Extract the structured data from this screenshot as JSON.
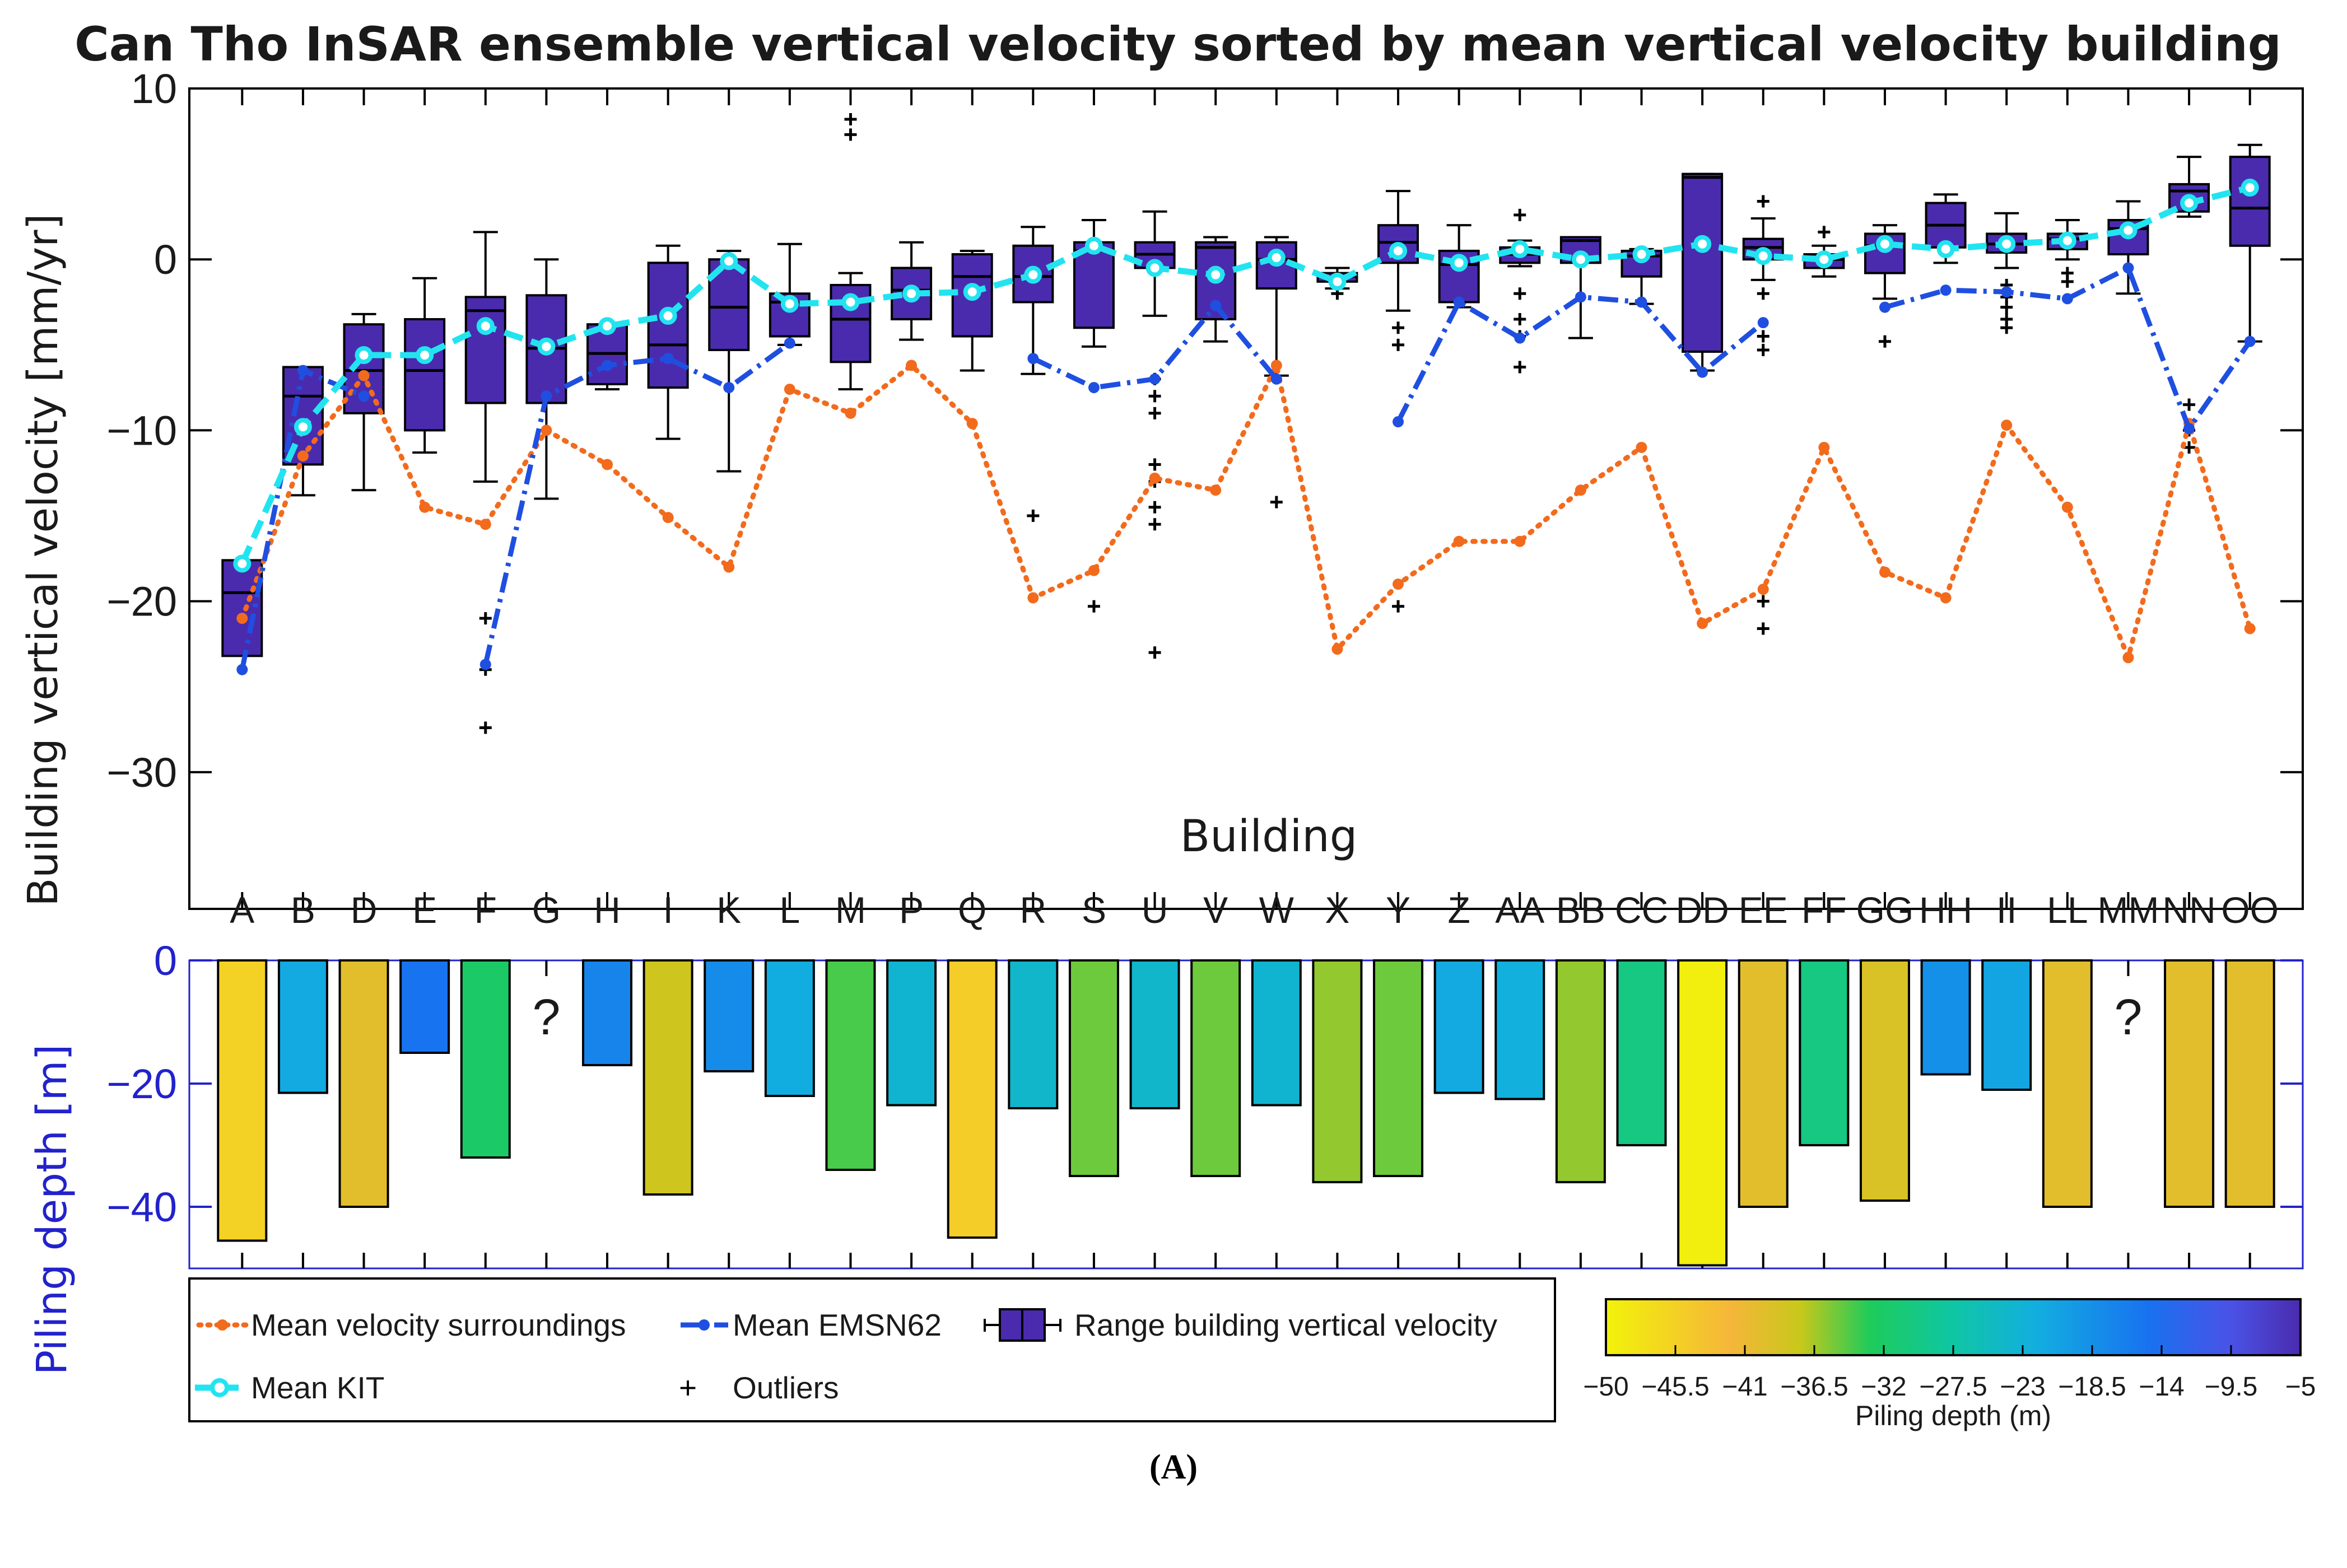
{
  "chart_data": {
    "type": "box",
    "title": "Can Tho InSAR ensemble vertical velocity sorted by mean vertical velocity building",
    "panel_label": "(A)",
    "top_panel": {
      "xlabel": "Building",
      "ylabel": "Building vertical velocity [mm/yr]",
      "ylim": [
        -38,
        10
      ],
      "yticks": [
        10,
        0,
        -10,
        -20,
        -30
      ],
      "ytick_labels": [
        "10",
        "0",
        "−10",
        "−20",
        "−30"
      ]
    },
    "categories": [
      "A",
      "B",
      "D",
      "E",
      "F",
      "G",
      "H",
      "I",
      "K",
      "L",
      "M",
      "P",
      "Q",
      "R",
      "S",
      "U",
      "V",
      "W",
      "X",
      "Y",
      "Z",
      "AA",
      "BB",
      "CC",
      "DD",
      "EE",
      "FF",
      "GG",
      "HH",
      "II",
      "LL",
      "MM",
      "NN",
      "OO"
    ],
    "boxes": [
      {
        "q1": -23.2,
        "med": -19.5,
        "q3": -17.6,
        "wl": null,
        "wh": null,
        "out": []
      },
      {
        "q1": -12,
        "med": -8,
        "q3": -6.3,
        "wl": -13.8,
        "wh": -6.3,
        "out": []
      },
      {
        "q1": -9,
        "med": -6.5,
        "q3": -3.8,
        "wl": -13.5,
        "wh": -3.2,
        "out": []
      },
      {
        "q1": -10,
        "med": -6.5,
        "q3": -3.5,
        "wl": -11.3,
        "wh": -1.1,
        "out": []
      },
      {
        "q1": -8.4,
        "med": -3,
        "q3": -2.2,
        "wl": -13,
        "wh": 1.6,
        "out": [
          -21,
          -24,
          -27.4
        ]
      },
      {
        "q1": -8.4,
        "med": -5.2,
        "q3": -2.1,
        "wl": -14,
        "wh": 0,
        "out": []
      },
      {
        "q1": -7.3,
        "med": -5.5,
        "q3": -3.8,
        "wl": -7.6,
        "wh": -3.8,
        "out": []
      },
      {
        "q1": -7.5,
        "med": -5,
        "q3": -0.2,
        "wl": -10.5,
        "wh": 0.8,
        "out": []
      },
      {
        "q1": -5.3,
        "med": -2.8,
        "q3": 0,
        "wl": -12.4,
        "wh": 0.5,
        "out": []
      },
      {
        "q1": -4.5,
        "med": -2.5,
        "q3": -2,
        "wl": -5,
        "wh": 0.9,
        "out": []
      },
      {
        "q1": -6,
        "med": -3.5,
        "q3": -1.5,
        "wl": -7.6,
        "wh": -0.8,
        "out": [
          7.3,
          8.2
        ]
      },
      {
        "q1": -3.5,
        "med": -1.8,
        "q3": -0.5,
        "wl": -4.7,
        "wh": 1,
        "out": []
      },
      {
        "q1": -4.5,
        "med": -1,
        "q3": 0.3,
        "wl": -6.5,
        "wh": 0.5,
        "out": []
      },
      {
        "q1": -2.5,
        "med": -1,
        "q3": 0.8,
        "wl": -6.7,
        "wh": 1.9,
        "out": [
          -15
        ]
      },
      {
        "q1": -4,
        "med": 0.5,
        "q3": 1,
        "wl": -5.1,
        "wh": 2.3,
        "out": [
          -20.3
        ]
      },
      {
        "q1": -0.5,
        "med": 0.3,
        "q3": 1,
        "wl": -3.3,
        "wh": 2.8,
        "out": [
          -7,
          -8,
          -9,
          -12,
          -13,
          -14.5,
          -15.5,
          -23
        ]
      },
      {
        "q1": -3.5,
        "med": 0.7,
        "q3": 1,
        "wl": -4.8,
        "wh": 1.3,
        "out": []
      },
      {
        "q1": -1.7,
        "med": 0,
        "q3": 1,
        "wl": -6.8,
        "wh": 1.3,
        "out": [
          -14.2
        ]
      },
      {
        "q1": -1.3,
        "med": -1,
        "q3": -0.8,
        "wl": -1.7,
        "wh": -0.5,
        "out": [
          -2
        ]
      },
      {
        "q1": -0.2,
        "med": 1,
        "q3": 2,
        "wl": -3,
        "wh": 4,
        "out": [
          -4,
          -5,
          -20.3
        ]
      },
      {
        "q1": -2.5,
        "med": -0.3,
        "q3": 0.5,
        "wl": -2.8,
        "wh": 2,
        "out": []
      },
      {
        "q1": -0.2,
        "med": 0.3,
        "q3": 0.7,
        "wl": -0.4,
        "wh": 1.1,
        "out": [
          -2,
          -3.5,
          -4.5,
          -6.3,
          2.6
        ]
      },
      {
        "q1": -0.2,
        "med": 1.1,
        "q3": 1.3,
        "wl": -4.6,
        "wh": 1.3,
        "out": []
      },
      {
        "q1": -1,
        "med": 0.2,
        "q3": 0.5,
        "wl": -2.6,
        "wh": 0.6,
        "out": []
      },
      {
        "q1": -5.4,
        "med": 4.8,
        "q3": 5,
        "wl": -6.5,
        "wh": 5,
        "out": []
      },
      {
        "q1": 0,
        "med": 0.7,
        "q3": 1.2,
        "wl": -1.2,
        "wh": 2.4,
        "out": [
          3.4,
          -2,
          -4.5,
          -5.3,
          -20,
          -21.6
        ]
      },
      {
        "q1": -0.5,
        "med": 0,
        "q3": 0.3,
        "wl": -1,
        "wh": 0.8,
        "out": [
          1.6
        ]
      },
      {
        "q1": -0.8,
        "med": 0.8,
        "q3": 1.5,
        "wl": -2.3,
        "wh": 2,
        "out": [
          -4.8
        ]
      },
      {
        "q1": 0.7,
        "med": 2,
        "q3": 3.3,
        "wl": -0.2,
        "wh": 3.8,
        "out": []
      },
      {
        "q1": 0.4,
        "med": 0.9,
        "q3": 1.5,
        "wl": -0.5,
        "wh": 2.7,
        "out": [
          -1.5,
          -2.2,
          -2.8,
          -3.5,
          -4
        ]
      },
      {
        "q1": 0.6,
        "med": 1.2,
        "q3": 1.5,
        "wl": 0,
        "wh": 2.3,
        "out": [
          -0.8,
          -1.3
        ]
      },
      {
        "q1": 0.3,
        "med": 1.8,
        "q3": 2.3,
        "wl": -2,
        "wh": 3.4,
        "out": []
      },
      {
        "q1": 2.8,
        "med": 4,
        "q3": 4.4,
        "wl": 2.5,
        "wh": 6,
        "out": [
          -8.5,
          -10,
          -11
        ]
      },
      {
        "q1": 0.8,
        "med": 3,
        "q3": 6,
        "wl": -4.8,
        "wh": 6.7,
        "out": []
      }
    ],
    "series": [
      {
        "name": "Mean velocity surroundings",
        "color": "#F26B1D",
        "style": "dotted",
        "marker": "dot",
        "values": [
          -21,
          -11.5,
          -6.8,
          -14.5,
          -15.5,
          -10,
          -12,
          -15.1,
          -18,
          -7.6,
          -9,
          -6.2,
          -9.6,
          -19.8,
          -18.2,
          -12.8,
          -13.5,
          -6.2,
          -22.8,
          -19,
          -16.5,
          -16.5,
          -13.5,
          -11,
          -21.3,
          -19.3,
          -11,
          -18.3,
          -19.8,
          -9.7,
          -14.5,
          -23.3,
          -9.6,
          -21.6
        ]
      },
      {
        "name": "Mean EMSN62",
        "color": "#1F4FE0",
        "style": "dashdot",
        "marker": "dot",
        "values": [
          -24,
          -6.5,
          -8,
          null,
          -23.7,
          -8,
          -6.2,
          -5.8,
          -7.5,
          -4.9,
          null,
          null,
          null,
          -5.8,
          -7.5,
          -7,
          -2.7,
          -7,
          null,
          -9.5,
          -2.5,
          -4.6,
          -2.2,
          -2.5,
          -6.6,
          -3.7,
          null,
          -2.8,
          -1.8,
          -1.9,
          -2.3,
          -0.5,
          -9.9,
          -4.8
        ]
      },
      {
        "name": "Mean KIT",
        "color": "#22E4F0",
        "style": "dashed",
        "marker": "circle",
        "values": [
          -17.8,
          -9.8,
          -5.6,
          -5.6,
          -3.9,
          -5.1,
          -3.9,
          -3.3,
          -0.1,
          -2.6,
          -2.5,
          -2,
          -1.9,
          -0.9,
          0.8,
          -0.5,
          -0.9,
          0.1,
          -1.3,
          0.5,
          -0.2,
          0.6,
          0,
          0.3,
          0.9,
          0.2,
          0,
          0.9,
          0.6,
          0.9,
          1.1,
          1.7,
          3.3,
          4.2
        ]
      }
    ],
    "box_fill_color": "#4A2BAE",
    "bottom_panel": {
      "ylabel": "Piling depth [m]",
      "ylim": [
        -50,
        0
      ],
      "yticks": [
        0,
        -20,
        -40
      ],
      "ytick_labels": [
        "0",
        "−20",
        "−40"
      ],
      "unknown_marker": "?",
      "depths": [
        -45.5,
        -21.5,
        -40,
        -15,
        -32,
        null,
        -17,
        -38,
        -18,
        -22,
        -34,
        -23.5,
        -45,
        -24,
        -35,
        -24,
        -35,
        -23.5,
        -36,
        -35,
        -21.5,
        -22.5,
        -36,
        -30,
        -49.5,
        -40,
        -30,
        -39,
        -18.5,
        -21,
        -40,
        null,
        -40,
        -40
      ]
    },
    "legend": {
      "surroundings": "Mean velocity surroundings",
      "emsn": "Mean EMSN62",
      "range": "Range building vertical velocity",
      "kit": "Mean KIT",
      "outliers": "Outliers",
      "outlier_symbol": "+"
    },
    "colorbar": {
      "label": "Piling depth (m)",
      "ticks": [
        "−50",
        "−45.5",
        "−41",
        "−36.5",
        "−32",
        "−27.5",
        "−23",
        "−18.5",
        "−14",
        "−9.5",
        "−5"
      ],
      "range": [
        -50,
        -5
      ]
    }
  }
}
